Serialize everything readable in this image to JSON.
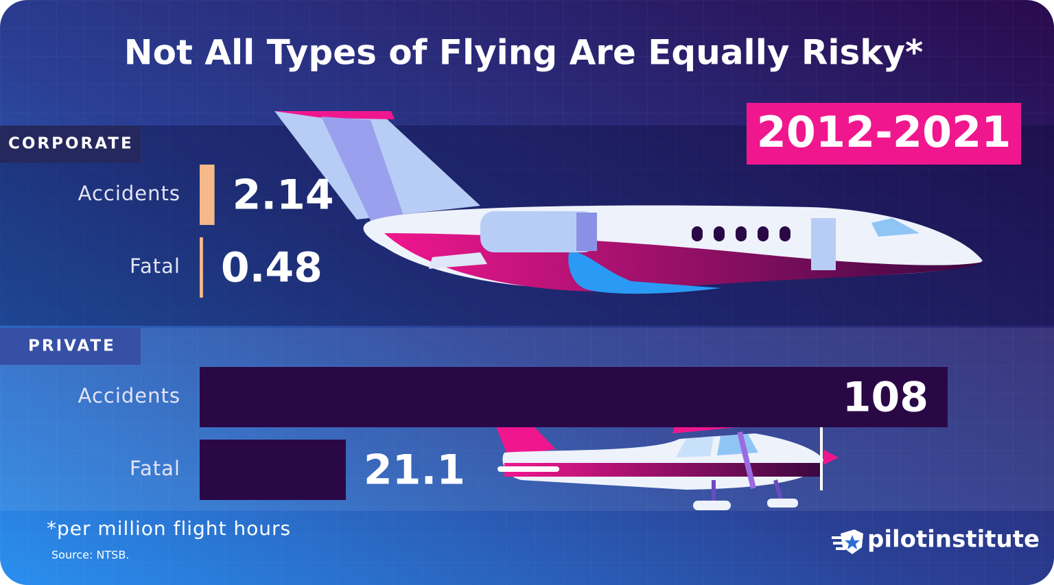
{
  "chart_data": {
    "type": "bar",
    "orientation": "horizontal",
    "title": "Not All Types of Flying Are Equally Risky*",
    "period": "2012-2021",
    "groups": [
      {
        "name": "CORPORATE",
        "categories": [
          "Accidents",
          "Fatal"
        ],
        "values": [
          2.14,
          0.48
        ],
        "color": "#f5b98a"
      },
      {
        "name": "PRIVATE",
        "categories": [
          "Accidents",
          "Fatal"
        ],
        "values": [
          108,
          21.1
        ],
        "color": "#2a0845"
      }
    ],
    "footnote": "*per million flight hours",
    "source": "Source: NTSB.",
    "brand": "pilotinstitute"
  }
}
